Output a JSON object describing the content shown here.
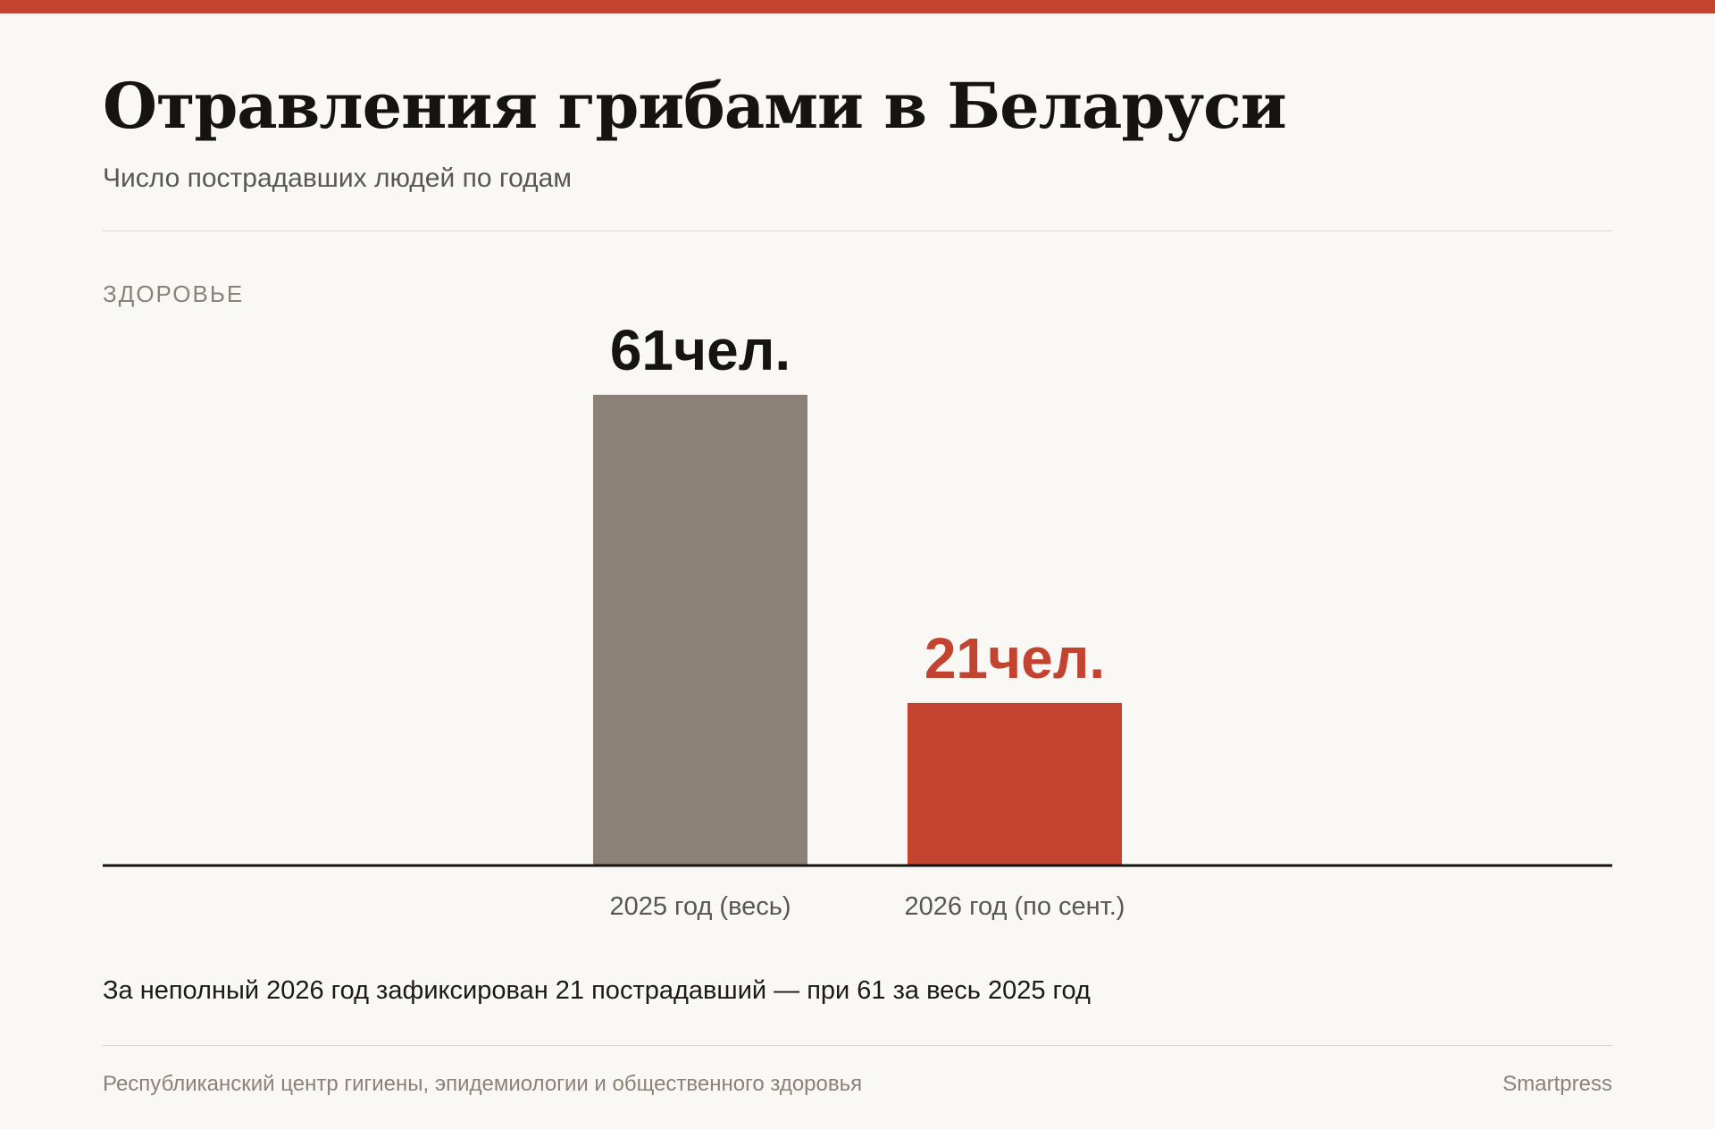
{
  "header": {
    "title": "Отравления грибами в Беларуси",
    "subtitle": "Число пострадавших людей по годам",
    "category": "ЗДОРОВЬЕ"
  },
  "chart_data": {
    "type": "bar",
    "categories": [
      "2025 год (весь)",
      "2026 год (по сент.)"
    ],
    "values": [
      61,
      21
    ],
    "value_labels": [
      "61чел.",
      "21чел."
    ],
    "colors": [
      "#8b8177",
      "#c2432f"
    ],
    "label_colors": [
      "#161310",
      "#c2432f"
    ],
    "ylim": [
      0,
      61
    ],
    "grid": false,
    "legend": "none"
  },
  "note": "За неполный 2026 год зафиксирован 21 пострадавший — при 61 за весь 2025 год",
  "footer": {
    "source": "Республиканский центр гигиены, эпидемиологии и общественного здоровья",
    "publisher": "Smartpress"
  },
  "colors": {
    "accent": "#c2432f",
    "background": "#faf8f5"
  }
}
